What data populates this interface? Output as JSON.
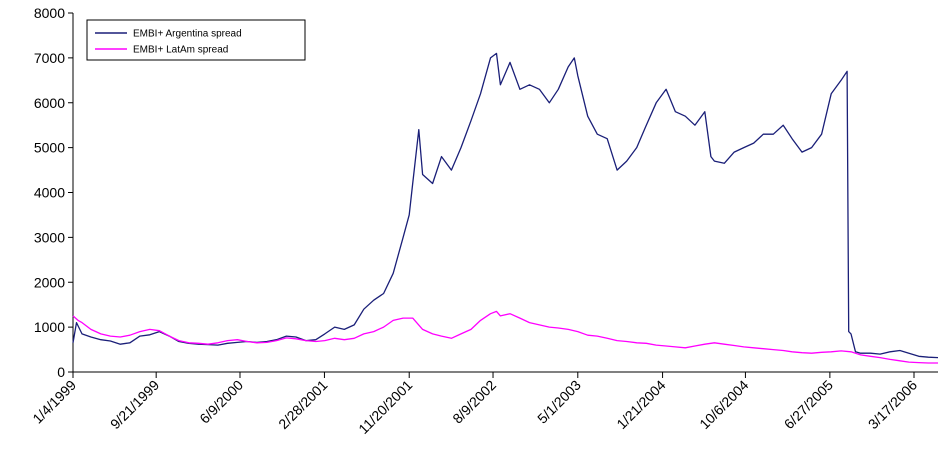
{
  "chart_data": {
    "type": "line",
    "title": "",
    "xlabel": "",
    "ylabel": "",
    "ylim": [
      0,
      8000
    ],
    "y_ticks": [
      0,
      1000,
      2000,
      3000,
      4000,
      5000,
      6000,
      7000,
      8000
    ],
    "x_range": [
      "1999-01-04",
      "2006-05-31"
    ],
    "x_ticks": [
      {
        "label": "1/4/1999",
        "date": "1999-01-04"
      },
      {
        "label": "9/21/1999",
        "date": "1999-09-21"
      },
      {
        "label": "6/9/2000",
        "date": "2000-06-09"
      },
      {
        "label": "2/28/2001",
        "date": "2001-02-28"
      },
      {
        "label": "11/20/2001",
        "date": "2001-11-20"
      },
      {
        "label": "8/9/2002",
        "date": "2002-08-09"
      },
      {
        "label": "5/1/2003",
        "date": "2003-05-01"
      },
      {
        "label": "1/21/2004",
        "date": "2004-01-21"
      },
      {
        "label": "10/6/2004",
        "date": "2004-10-06"
      },
      {
        "label": "6/27/2005",
        "date": "2005-06-27"
      },
      {
        "label": "3/17/2006",
        "date": "2006-03-17"
      }
    ],
    "grid": false,
    "legend_position": "top-left",
    "series": [
      {
        "name": "EMBI+ Argentina spread",
        "color": "#1a1f78",
        "points": [
          [
            "1999-01-04",
            650
          ],
          [
            "1999-01-15",
            1100
          ],
          [
            "1999-02-01",
            850
          ],
          [
            "1999-03-01",
            780
          ],
          [
            "1999-04-01",
            720
          ],
          [
            "1999-05-01",
            690
          ],
          [
            "1999-06-01",
            620
          ],
          [
            "1999-07-01",
            650
          ],
          [
            "1999-08-01",
            800
          ],
          [
            "1999-09-01",
            830
          ],
          [
            "1999-10-01",
            900
          ],
          [
            "1999-11-01",
            800
          ],
          [
            "1999-12-01",
            680
          ],
          [
            "2000-01-01",
            640
          ],
          [
            "2000-02-01",
            620
          ],
          [
            "2000-03-01",
            610
          ],
          [
            "2000-04-01",
            600
          ],
          [
            "2000-05-01",
            640
          ],
          [
            "2000-06-01",
            660
          ],
          [
            "2000-07-01",
            680
          ],
          [
            "2000-08-01",
            660
          ],
          [
            "2000-09-01",
            680
          ],
          [
            "2000-10-01",
            720
          ],
          [
            "2000-11-01",
            800
          ],
          [
            "2000-12-01",
            780
          ],
          [
            "2001-01-01",
            700
          ],
          [
            "2001-02-01",
            720
          ],
          [
            "2001-03-01",
            850
          ],
          [
            "2001-04-01",
            1000
          ],
          [
            "2001-05-01",
            950
          ],
          [
            "2001-06-01",
            1050
          ],
          [
            "2001-07-01",
            1400
          ],
          [
            "2001-08-01",
            1600
          ],
          [
            "2001-09-01",
            1750
          ],
          [
            "2001-10-01",
            2200
          ],
          [
            "2001-11-01",
            3000
          ],
          [
            "2001-11-20",
            3500
          ],
          [
            "2001-12-01",
            4200
          ],
          [
            "2001-12-20",
            5400
          ],
          [
            "2002-01-01",
            4400
          ],
          [
            "2002-02-01",
            4200
          ],
          [
            "2002-03-01",
            4800
          ],
          [
            "2002-04-01",
            4500
          ],
          [
            "2002-05-01",
            5000
          ],
          [
            "2002-06-01",
            5600
          ],
          [
            "2002-07-01",
            6200
          ],
          [
            "2002-08-01",
            7000
          ],
          [
            "2002-08-20",
            7100
          ],
          [
            "2002-09-01",
            6400
          ],
          [
            "2002-10-01",
            6900
          ],
          [
            "2002-11-01",
            6300
          ],
          [
            "2002-12-01",
            6400
          ],
          [
            "2003-01-01",
            6300
          ],
          [
            "2003-02-01",
            6000
          ],
          [
            "2003-03-01",
            6300
          ],
          [
            "2003-04-01",
            6800
          ],
          [
            "2003-04-20",
            7000
          ],
          [
            "2003-05-01",
            6600
          ],
          [
            "2003-06-01",
            5700
          ],
          [
            "2003-07-01",
            5300
          ],
          [
            "2003-08-01",
            5200
          ],
          [
            "2003-09-01",
            4500
          ],
          [
            "2003-10-01",
            4700
          ],
          [
            "2003-11-01",
            5000
          ],
          [
            "2003-12-01",
            5500
          ],
          [
            "2004-01-01",
            6000
          ],
          [
            "2004-02-01",
            6300
          ],
          [
            "2004-03-01",
            5800
          ],
          [
            "2004-04-01",
            5700
          ],
          [
            "2004-05-01",
            5500
          ],
          [
            "2004-06-01",
            5800
          ],
          [
            "2004-06-20",
            4800
          ],
          [
            "2004-07-01",
            4700
          ],
          [
            "2004-08-01",
            4650
          ],
          [
            "2004-09-01",
            4900
          ],
          [
            "2004-10-01",
            5000
          ],
          [
            "2004-11-01",
            5100
          ],
          [
            "2004-12-01",
            5300
          ],
          [
            "2005-01-01",
            5300
          ],
          [
            "2005-02-01",
            5500
          ],
          [
            "2005-03-01",
            5200
          ],
          [
            "2005-04-01",
            4900
          ],
          [
            "2005-05-01",
            5000
          ],
          [
            "2005-06-01",
            5300
          ],
          [
            "2005-07-01",
            6200
          ],
          [
            "2005-08-01",
            6500
          ],
          [
            "2005-08-20",
            6700
          ],
          [
            "2005-08-25",
            900
          ],
          [
            "2005-09-01",
            850
          ],
          [
            "2005-09-15",
            450
          ],
          [
            "2005-10-01",
            420
          ],
          [
            "2005-11-01",
            420
          ],
          [
            "2005-12-01",
            400
          ],
          [
            "2006-01-01",
            450
          ],
          [
            "2006-02-01",
            480
          ],
          [
            "2006-03-01",
            420
          ],
          [
            "2006-04-01",
            350
          ],
          [
            "2006-05-01",
            330
          ],
          [
            "2006-05-31",
            320
          ]
        ]
      },
      {
        "name": "EMBI+ LatAm spread",
        "color": "#ff00ff",
        "points": [
          [
            "1999-01-04",
            1250
          ],
          [
            "1999-01-20",
            1150
          ],
          [
            "1999-02-01",
            1100
          ],
          [
            "1999-03-01",
            950
          ],
          [
            "1999-04-01",
            850
          ],
          [
            "1999-05-01",
            800
          ],
          [
            "1999-06-01",
            780
          ],
          [
            "1999-07-01",
            820
          ],
          [
            "1999-08-01",
            900
          ],
          [
            "1999-09-01",
            950
          ],
          [
            "1999-10-01",
            920
          ],
          [
            "1999-11-01",
            800
          ],
          [
            "1999-12-01",
            700
          ],
          [
            "2000-01-01",
            650
          ],
          [
            "2000-02-01",
            640
          ],
          [
            "2000-03-01",
            620
          ],
          [
            "2000-04-01",
            650
          ],
          [
            "2000-05-01",
            700
          ],
          [
            "2000-06-01",
            720
          ],
          [
            "2000-07-01",
            680
          ],
          [
            "2000-08-01",
            650
          ],
          [
            "2000-09-01",
            660
          ],
          [
            "2000-10-01",
            700
          ],
          [
            "2000-11-01",
            760
          ],
          [
            "2000-12-01",
            740
          ],
          [
            "2001-01-01",
            700
          ],
          [
            "2001-02-01",
            680
          ],
          [
            "2001-03-01",
            700
          ],
          [
            "2001-04-01",
            750
          ],
          [
            "2001-05-01",
            720
          ],
          [
            "2001-06-01",
            750
          ],
          [
            "2001-07-01",
            850
          ],
          [
            "2001-08-01",
            900
          ],
          [
            "2001-09-01",
            1000
          ],
          [
            "2001-10-01",
            1150
          ],
          [
            "2001-11-01",
            1200
          ],
          [
            "2001-12-01",
            1200
          ],
          [
            "2002-01-01",
            950
          ],
          [
            "2002-02-01",
            850
          ],
          [
            "2002-03-01",
            800
          ],
          [
            "2002-04-01",
            750
          ],
          [
            "2002-05-01",
            850
          ],
          [
            "2002-06-01",
            950
          ],
          [
            "2002-07-01",
            1150
          ],
          [
            "2002-08-01",
            1300
          ],
          [
            "2002-08-20",
            1350
          ],
          [
            "2002-09-01",
            1250
          ],
          [
            "2002-10-01",
            1300
          ],
          [
            "2002-11-01",
            1200
          ],
          [
            "2002-12-01",
            1100
          ],
          [
            "2003-01-01",
            1050
          ],
          [
            "2003-02-01",
            1000
          ],
          [
            "2003-03-01",
            980
          ],
          [
            "2003-04-01",
            950
          ],
          [
            "2003-05-01",
            900
          ],
          [
            "2003-06-01",
            820
          ],
          [
            "2003-07-01",
            800
          ],
          [
            "2003-08-01",
            750
          ],
          [
            "2003-09-01",
            700
          ],
          [
            "2003-10-01",
            680
          ],
          [
            "2003-11-01",
            650
          ],
          [
            "2003-12-01",
            640
          ],
          [
            "2004-01-01",
            600
          ],
          [
            "2004-02-01",
            580
          ],
          [
            "2004-03-01",
            560
          ],
          [
            "2004-04-01",
            540
          ],
          [
            "2004-05-01",
            580
          ],
          [
            "2004-06-01",
            620
          ],
          [
            "2004-07-01",
            650
          ],
          [
            "2004-08-01",
            620
          ],
          [
            "2004-09-01",
            590
          ],
          [
            "2004-10-01",
            560
          ],
          [
            "2004-11-01",
            540
          ],
          [
            "2004-12-01",
            520
          ],
          [
            "2005-01-01",
            500
          ],
          [
            "2005-02-01",
            480
          ],
          [
            "2005-03-01",
            450
          ],
          [
            "2005-04-01",
            430
          ],
          [
            "2005-05-01",
            420
          ],
          [
            "2005-06-01",
            440
          ],
          [
            "2005-07-01",
            450
          ],
          [
            "2005-08-01",
            470
          ],
          [
            "2005-09-01",
            450
          ],
          [
            "2005-10-01",
            380
          ],
          [
            "2005-11-01",
            350
          ],
          [
            "2005-12-01",
            320
          ],
          [
            "2006-01-01",
            280
          ],
          [
            "2006-02-01",
            250
          ],
          [
            "2006-03-01",
            220
          ],
          [
            "2006-04-01",
            210
          ],
          [
            "2006-05-01",
            200
          ],
          [
            "2006-05-31",
            200
          ]
        ]
      }
    ]
  }
}
